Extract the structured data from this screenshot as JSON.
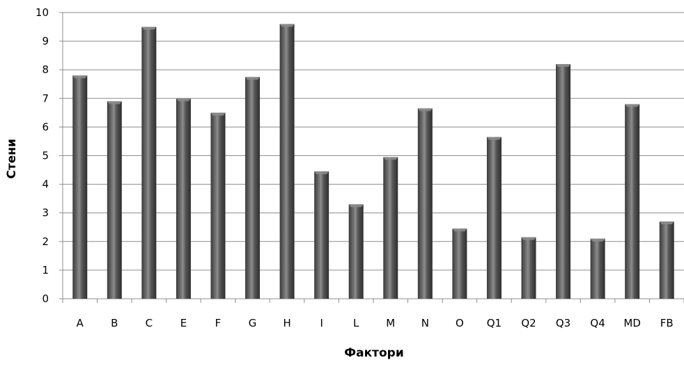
{
  "chart_data": {
    "type": "bar",
    "title": "",
    "xlabel": "Фактори",
    "ylabel": "Стени",
    "categories": [
      "A",
      "B",
      "C",
      "E",
      "F",
      "G",
      "H",
      "I",
      "L",
      "M",
      "N",
      "O",
      "Q1",
      "Q2",
      "Q3",
      "Q4",
      "MD",
      "FB"
    ],
    "values": [
      7.8,
      6.9,
      9.5,
      7.0,
      6.5,
      7.75,
      9.6,
      4.45,
      3.3,
      4.95,
      6.65,
      2.45,
      5.65,
      2.15,
      8.2,
      2.1,
      6.8,
      2.7
    ],
    "ylim": [
      0,
      10
    ],
    "yticks": [
      "0",
      "1",
      "2",
      "3",
      "4",
      "5",
      "6",
      "7",
      "8",
      "9",
      "10"
    ],
    "grid": true,
    "legend": "none",
    "bar_color": "#4a4a4a",
    "bar_highlight_color": "#8c8c8c",
    "grid_color": "#8c8c8c"
  }
}
